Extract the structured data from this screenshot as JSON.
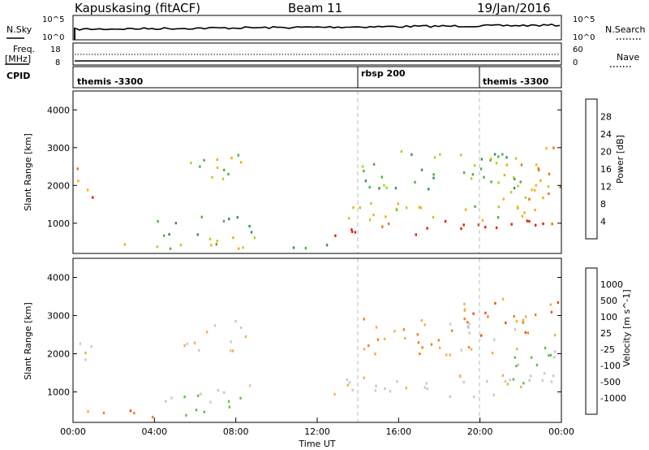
{
  "header": {
    "station": "Kapuskasing (fitACF)",
    "beam": "Beam 11",
    "date": "19/Jan/2016"
  },
  "noise_panel": {
    "left_label": "N.Sky",
    "right_label": "N.Search",
    "left_ticks": [
      "10^5",
      "10^0"
    ],
    "right_ticks": [
      "10^5",
      "10^0"
    ]
  },
  "freq_panel": {
    "left_label_1": "Freq.",
    "left_label_2": "[MHz]",
    "right_label": "Nave",
    "left_ticks": [
      "18",
      "8"
    ],
    "right_ticks": [
      "60",
      "0"
    ]
  },
  "cpid": {
    "label": "CPID",
    "segments": [
      {
        "text": "themis -3300",
        "start_hour": 0
      },
      {
        "text": "rbsp 200",
        "start_hour": 14
      },
      {
        "text": "themis -3300",
        "start_hour": 20
      }
    ]
  },
  "colors": {
    "power": [
      "#1010e0",
      "#2050b0",
      "#3a8a70",
      "#50b040",
      "#b0d020",
      "#f0b000",
      "#f07000",
      "#e02000"
    ],
    "velocity": [
      "#ee1010",
      "#f05010",
      "#f08020",
      "#f0b040",
      "#c8c8c0",
      "#c8c8c0",
      "#60c040",
      "#2a8060",
      "#3050a0",
      "#2030c0"
    ]
  },
  "chart_data": [
    {
      "type": "heatmap",
      "name": "power",
      "xlabel": "",
      "ylabel": "Slant Range [km]",
      "xlim": [
        0,
        24
      ],
      "ylim": [
        200,
        4500
      ],
      "yticks": [
        "1000",
        "2000",
        "3000",
        "4000"
      ],
      "colorbar_label": "Power [dB]",
      "colorbar_ticks": [
        "4",
        "8",
        "12",
        "16",
        "20",
        "24",
        "28"
      ],
      "features": [
        {
          "t0": 0.0,
          "t1": 1.0,
          "r0": 1700,
          "r1": 2500,
          "level": 6
        },
        {
          "t0": 0.5,
          "t1": 9.0,
          "r0": 350,
          "r1": 650,
          "level": 4
        },
        {
          "t0": 5.2,
          "t1": 8.5,
          "r0": 2100,
          "r1": 2900,
          "level": 4
        },
        {
          "t0": 4.0,
          "t1": 9.0,
          "r0": 700,
          "r1": 1200,
          "level": 3
        },
        {
          "t0": 12.8,
          "t1": 24.0,
          "r0": 700,
          "r1": 1100,
          "level": 7
        },
        {
          "t0": 13.5,
          "t1": 24.0,
          "r0": 1100,
          "r1": 1600,
          "level": 4
        },
        {
          "t0": 14.0,
          "t1": 22.0,
          "r0": 1900,
          "r1": 3000,
          "level": 3
        },
        {
          "t0": 21.0,
          "t1": 24.0,
          "r0": 1500,
          "r1": 3200,
          "level": 5
        },
        {
          "t0": 9.0,
          "t1": 12.5,
          "r0": 200,
          "r1": 500,
          "level": 2
        }
      ]
    },
    {
      "type": "heatmap",
      "name": "velocity",
      "xlabel": "Time UT",
      "ylabel": "Slant Range [km]",
      "xlim": [
        0,
        24
      ],
      "ylim": [
        200,
        4500
      ],
      "xticks": [
        "00:00",
        "04:00",
        "08:00",
        "12:00",
        "16:00",
        "20:00",
        "00:00"
      ],
      "yticks": [
        "1000",
        "2000",
        "3000",
        "4000"
      ],
      "colorbar_label": "Velocity [m s^-1]",
      "colorbar_ticks": [
        "1000",
        "500",
        "100",
        "25",
        "-25",
        "-100",
        "-500",
        "-1000"
      ],
      "features": [
        {
          "t0": 0.0,
          "t1": 1.0,
          "r0": 1700,
          "r1": 2500,
          "level": 4
        },
        {
          "t0": 0.5,
          "t1": 4.5,
          "r0": 350,
          "r1": 650,
          "level": 2
        },
        {
          "t0": 4.5,
          "t1": 8.0,
          "r0": 400,
          "r1": 650,
          "level": 6
        },
        {
          "t0": 5.2,
          "t1": 8.5,
          "r0": 2100,
          "r1": 2900,
          "level": 4
        },
        {
          "t0": 4.0,
          "t1": 9.0,
          "r0": 700,
          "r1": 1200,
          "level": 5
        },
        {
          "t0": 12.8,
          "t1": 24.0,
          "r0": 900,
          "r1": 1500,
          "level": 4
        },
        {
          "t0": 14.0,
          "t1": 22.0,
          "r0": 2000,
          "r1": 3000,
          "level": 3
        },
        {
          "t0": 19.0,
          "t1": 24.0,
          "r0": 2500,
          "r1": 3500,
          "level": 2
        },
        {
          "t0": 21.5,
          "t1": 24.0,
          "r0": 1200,
          "r1": 2400,
          "level": 5
        }
      ]
    }
  ]
}
